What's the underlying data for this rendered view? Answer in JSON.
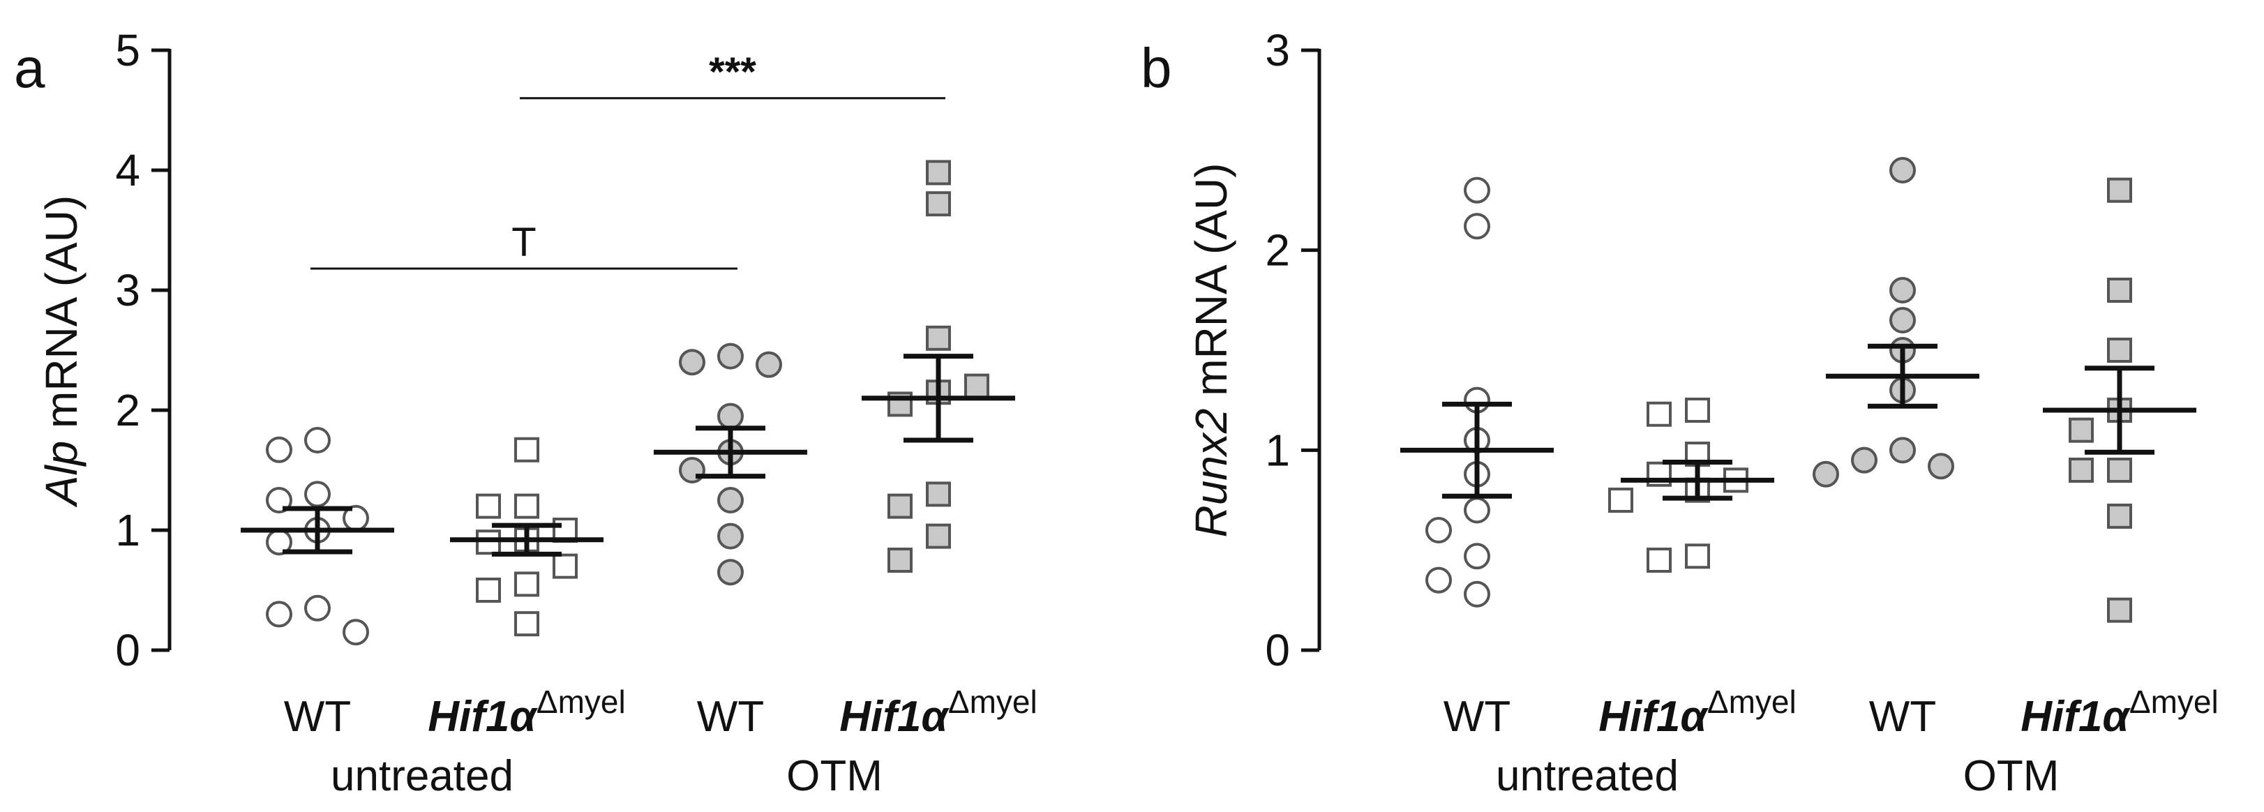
{
  "chart_data": [
    {
      "type": "scatter",
      "panel": "a",
      "ylabel_italic": "Alp",
      "ylabel_rest": " mRNA (AU)",
      "ylim": [
        0,
        5
      ],
      "yticks": [
        0,
        1,
        2,
        3,
        4,
        5
      ],
      "ytick_labels": [
        "0",
        "1",
        "2",
        "3",
        "4",
        "5"
      ],
      "categories": [
        {
          "label": "WT",
          "italic": false,
          "superscript": ""
        },
        {
          "label": "Hif1α",
          "italic": true,
          "superscript": "Δmyel"
        },
        {
          "label": "WT",
          "italic": false,
          "superscript": ""
        },
        {
          "label": "Hif1α",
          "italic": true,
          "superscript": "Δmyel"
        }
      ],
      "conditions": [
        {
          "label": "untreated",
          "categories": [
            0,
            1
          ]
        },
        {
          "label": "OTM",
          "categories": [
            2,
            3
          ]
        }
      ],
      "series": [
        {
          "name": "untreated WT",
          "marker": "circle",
          "fill": "#ffffff",
          "values": [
            1.75,
            1.67,
            1.3,
            1.25,
            1.1,
            1.0,
            0.9,
            0.35,
            0.3,
            0.15
          ],
          "mean": 1.0,
          "sem": 0.18
        },
        {
          "name": "untreated Hif1α Δmyel",
          "marker": "square",
          "fill": "#ffffff",
          "values": [
            1.67,
            1.2,
            1.2,
            1.0,
            0.92,
            0.9,
            0.7,
            0.55,
            0.5,
            0.22
          ],
          "mean": 0.92,
          "sem": 0.12
        },
        {
          "name": "OTM WT",
          "marker": "circle",
          "fill": "#c8c8c8",
          "values": [
            2.45,
            2.4,
            2.38,
            1.95,
            1.65,
            1.5,
            1.25,
            0.95,
            0.65
          ],
          "mean": 1.65,
          "sem": 0.2
        },
        {
          "name": "OTM Hif1α Δmyel",
          "marker": "square",
          "fill": "#c8c8c8",
          "values": [
            3.98,
            3.72,
            2.6,
            2.15,
            2.05,
            2.2,
            1.3,
            1.2,
            0.95,
            0.75
          ],
          "mean": 2.1,
          "sem": 0.35
        }
      ],
      "significance": [
        {
          "from": 1,
          "to": 3,
          "y": 4.6,
          "label": "***"
        },
        {
          "from": 0,
          "to": 2,
          "y": 3.18,
          "label": "T"
        }
      ]
    },
    {
      "type": "scatter",
      "panel": "b",
      "ylabel_italic": "Runx2",
      "ylabel_rest": " mRNA (AU)",
      "ylim": [
        0,
        3
      ],
      "yticks": [
        0,
        1,
        2,
        3
      ],
      "ytick_labels": [
        "0",
        "1",
        "2",
        "3"
      ],
      "categories": [
        {
          "label": "WT",
          "italic": false,
          "superscript": ""
        },
        {
          "label": "Hif1α",
          "italic": true,
          "superscript": "Δmyel"
        },
        {
          "label": "WT",
          "italic": false,
          "superscript": ""
        },
        {
          "label": "Hif1α",
          "italic": true,
          "superscript": "Δmyel"
        }
      ],
      "conditions": [
        {
          "label": "untreated",
          "categories": [
            0,
            1
          ]
        },
        {
          "label": "OTM",
          "categories": [
            2,
            3
          ]
        }
      ],
      "series": [
        {
          "name": "untreated WT",
          "marker": "circle",
          "fill": "#ffffff",
          "values": [
            2.3,
            2.12,
            1.25,
            1.05,
            0.88,
            0.7,
            0.6,
            0.47,
            0.35,
            0.28
          ],
          "mean": 1.0,
          "sem": 0.23
        },
        {
          "name": "untreated Hif1α Δmyel",
          "marker": "square",
          "fill": "#ffffff",
          "values": [
            1.2,
            1.18,
            0.98,
            0.88,
            0.85,
            0.8,
            0.75,
            0.47,
            0.45
          ],
          "mean": 0.85,
          "sem": 0.09
        },
        {
          "name": "OTM WT",
          "marker": "circle",
          "fill": "#c8c8c8",
          "values": [
            2.4,
            1.8,
            1.65,
            1.5,
            1.3,
            1.0,
            0.95,
            0.92,
            0.88
          ],
          "mean": 1.37,
          "sem": 0.15
        },
        {
          "name": "OTM Hif1α Δmyel",
          "marker": "square",
          "fill": "#c8c8c8",
          "values": [
            2.3,
            1.8,
            1.5,
            1.2,
            1.1,
            0.9,
            0.9,
            0.67,
            0.2
          ],
          "mean": 1.2,
          "sem": 0.21
        }
      ],
      "significance": []
    }
  ]
}
